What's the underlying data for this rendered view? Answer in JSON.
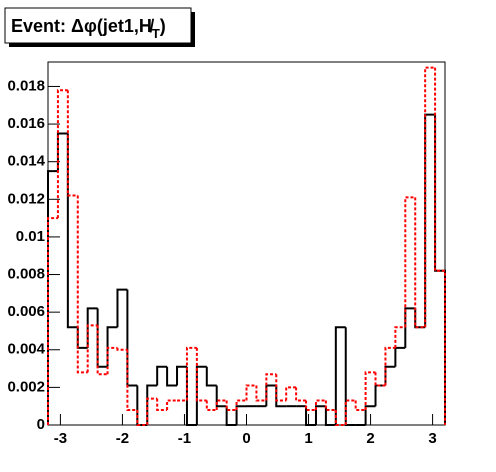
{
  "chart_data": {
    "type": "histogram",
    "title": [
      "Event: Δφ(jet1,",
      "H̸",
      "T",
      ")"
    ],
    "bins": [
      -3.2,
      -3.04,
      -2.88,
      -2.72,
      -2.56,
      -2.4,
      -2.24,
      -2.08,
      -1.92,
      -1.76,
      -1.6,
      -1.44,
      -1.28,
      -1.12,
      -0.96,
      -0.8,
      -0.64,
      -0.48,
      -0.32,
      -0.16,
      0,
      0.16,
      0.32,
      0.48,
      0.64,
      0.8,
      0.96,
      1.12,
      1.28,
      1.44,
      1.6,
      1.76,
      1.92,
      2.08,
      2.24,
      2.4,
      2.56,
      2.72,
      2.88,
      3.04,
      3.2
    ],
    "series": [
      {
        "color": "#000000",
        "dash": false,
        "values": [
          0.0135,
          0.0155,
          0.0052,
          0.0041,
          0.0062,
          0.0031,
          0.0052,
          0.0072,
          0.0021,
          0,
          0.0021,
          0.0031,
          0.0021,
          0.0031,
          0,
          0.0031,
          0.0021,
          0.001,
          0,
          0.001,
          0.001,
          0.001,
          0.0021,
          0.001,
          0.001,
          0.001,
          0,
          0.001,
          0,
          0.0052,
          0,
          0,
          0.001,
          0.0021,
          0.0031,
          0.0041,
          0.0062,
          0.0052,
          0.0165,
          0.0082
        ]
      },
      {
        "color": "#ff0000",
        "dash": true,
        "values": [
          0.011,
          0.0178,
          0.0122,
          0.0028,
          0.0053,
          0.0027,
          0.0041,
          0.004,
          0.0008,
          0,
          0.0014,
          0.0008,
          0.0013,
          0.0013,
          0.0041,
          0.0013,
          0.0008,
          0.0013,
          0.0008,
          0.0013,
          0.0021,
          0.0013,
          0.0027,
          0.0013,
          0.002,
          0.0013,
          0.0008,
          0.0013,
          0.0008,
          0,
          0.0013,
          0.0008,
          0.0028,
          0.0021,
          0.0041,
          0.0052,
          0.0121,
          0.0052,
          0.019,
          0.0082
        ]
      }
    ],
    "xlim": [
      -3.2,
      3.2
    ],
    "xticks": [
      -3,
      -2,
      -1,
      0,
      1,
      2,
      3
    ],
    "ylim": [
      0,
      0.0193
    ],
    "yticks": [
      0,
      0.002,
      0.004,
      0.006,
      0.008,
      0.01,
      0.012,
      0.014,
      0.016,
      0.018
    ]
  }
}
